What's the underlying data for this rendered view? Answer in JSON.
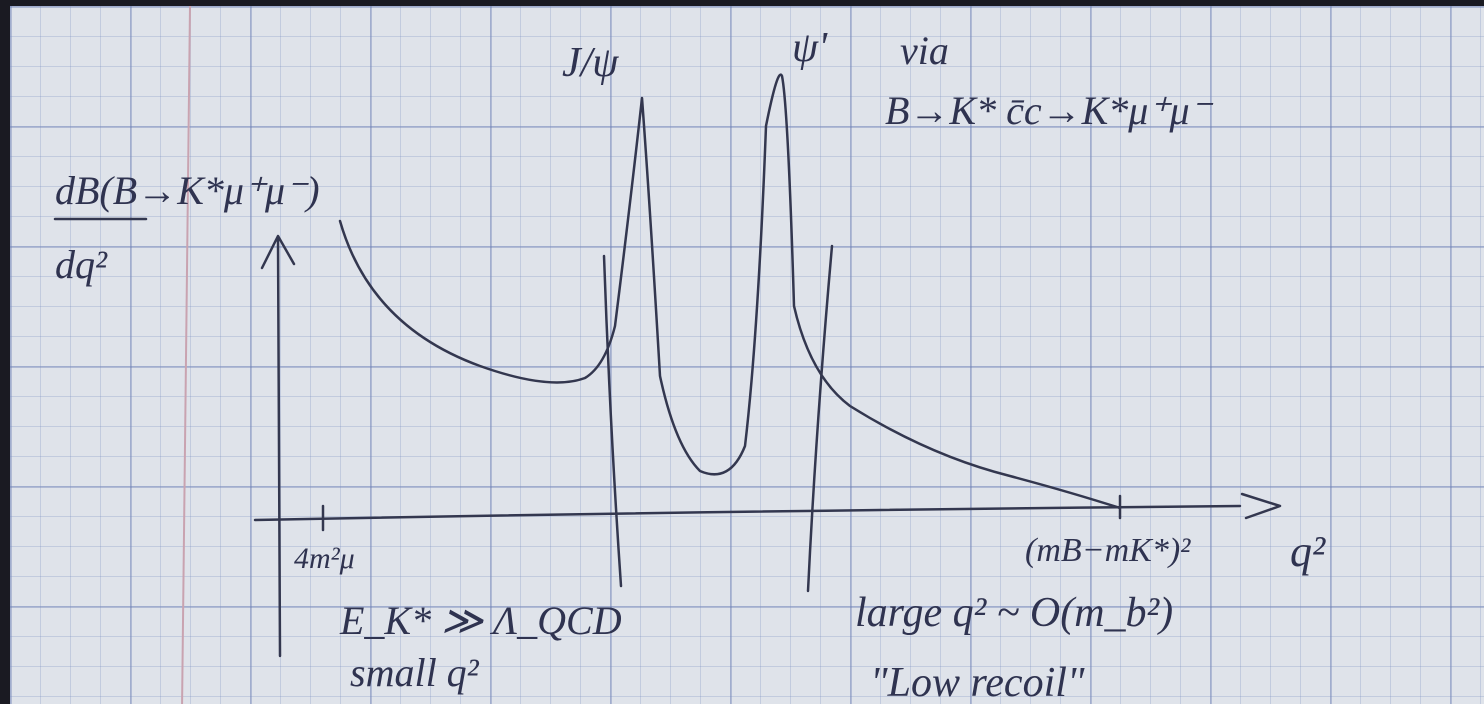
{
  "labels": {
    "y_axis_top": "dB(B→K*μ⁺μ⁻)",
    "y_axis_bottom": "dq²",
    "jpsi": "J/ψ",
    "psi_prime": "ψ'",
    "via": "via",
    "decay_chain": "B→K* c̄c→K*μ⁺μ⁻",
    "low_marker": "4m²μ",
    "high_marker": "(mB−mK*)²",
    "x_axis": "q²",
    "low_region_1": "E_K* ≫ Λ_QCD",
    "low_region_2": "small q²",
    "high_region_1": "large q² ~ O(m_b²)",
    "high_region_2": "\"Low recoil\""
  }
}
